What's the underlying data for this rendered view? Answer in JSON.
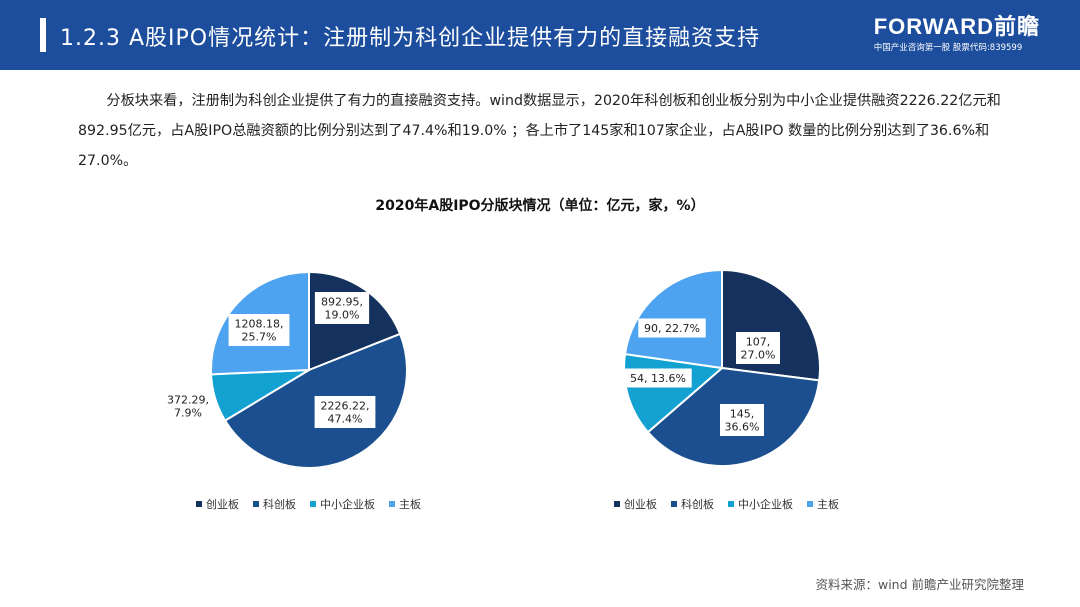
{
  "header": {
    "title": "1.2.3 A股IPO情况统计：注册制为科创企业提供有力的直接融资支持",
    "logo_main": "FORWARD前瞻",
    "logo_sub": "中国产业咨询第一股 股票代码:839599"
  },
  "intro": "分板块来看，注册制为科创企业提供了有力的直接融资支持。wind数据显示，2020年科创板和创业板分别为中小企业提供融资2226.22亿元和892.95亿元，占A股IPO总融资额的比例分别达到了47.4%和19.0% ；各上市了145家和107家企业，占A股IPO 数量的比例分别达到了36.6%和27.0%。",
  "chart_title": "2020年A股IPO分版块情况（单位：亿元，家，%）",
  "colors": {
    "header_bg": "#1d4e9e",
    "series": [
      "#15325e",
      "#1b4f8f",
      "#12a1d1",
      "#4ea3f0"
    ]
  },
  "chart_data": [
    {
      "type": "pie",
      "categories": [
        "创业板",
        "科创板",
        "中小企业板",
        "主板"
      ],
      "values": [
        892.95,
        2226.22,
        372.29,
        1208.18
      ],
      "percents": [
        19.0,
        47.4,
        7.9,
        25.7
      ],
      "labels": [
        [
          "892.95,",
          "19.0%"
        ],
        [
          "2226.22,",
          "47.4%"
        ],
        [
          "372.29,",
          "7.9%"
        ],
        [
          "1208.18,",
          "25.7%"
        ]
      ],
      "legend": [
        "创业板",
        "科创板",
        "中小企业板",
        "主板"
      ],
      "legend_position": "bottom"
    },
    {
      "type": "pie",
      "categories": [
        "创业板",
        "科创板",
        "中小企业板",
        "主板"
      ],
      "values": [
        107,
        145,
        54,
        90
      ],
      "percents": [
        27.0,
        36.6,
        13.6,
        22.7
      ],
      "labels": [
        [
          "107,",
          "27.0%"
        ],
        [
          "145,",
          "36.6%"
        ],
        [
          "54, 13.6%"
        ],
        [
          "90, 22.7%"
        ]
      ],
      "legend": [
        "创业板",
        "科创板",
        "中小企业板",
        "主板"
      ],
      "legend_position": "bottom"
    }
  ],
  "source": "资料来源：wind 前瞻产业研究院整理"
}
